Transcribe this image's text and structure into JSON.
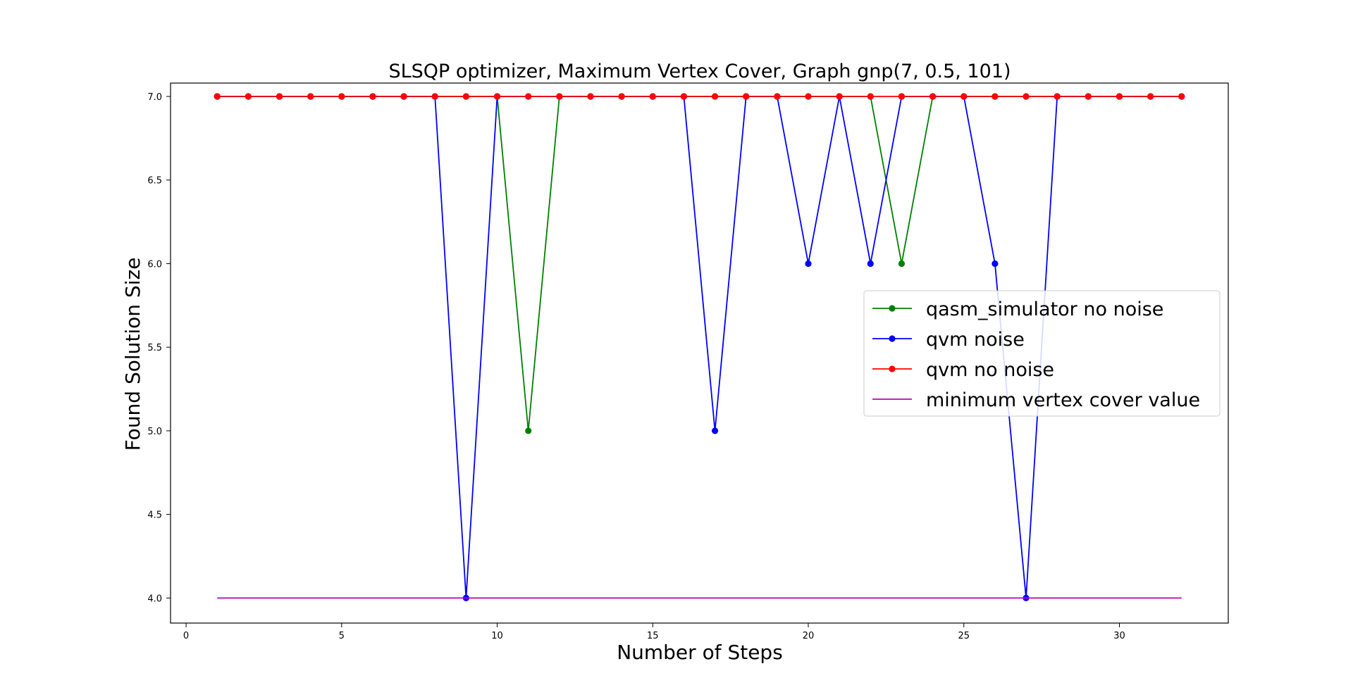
{
  "chart_data": {
    "type": "line",
    "title": "SLSQP optimizer, Maximum Vertex Cover, Graph gnp(7, 0.5, 101)",
    "xlabel": "Number of Steps",
    "ylabel": "Found Solution Size",
    "xlim": [
      -0.5,
      33.5
    ],
    "ylim": [
      3.85,
      7.08
    ],
    "xticks": [
      0,
      5,
      10,
      15,
      20,
      25,
      30
    ],
    "xtick_labels": [
      "0",
      "5",
      "10",
      "15",
      "20",
      "25",
      "30"
    ],
    "yticks": [
      4.0,
      4.5,
      5.0,
      5.5,
      6.0,
      6.5,
      7.0
    ],
    "ytick_labels": [
      "4.0",
      "4.5",
      "5.0",
      "5.5",
      "6.0",
      "6.5",
      "7.0"
    ],
    "grid": false,
    "legend_position": "center-right",
    "x": [
      1,
      2,
      3,
      4,
      5,
      6,
      7,
      8,
      9,
      10,
      11,
      12,
      13,
      14,
      15,
      16,
      17,
      18,
      19,
      20,
      21,
      22,
      23,
      24,
      25,
      26,
      27,
      28,
      29,
      30,
      31,
      32
    ],
    "series": [
      {
        "name": "qasm_simulator no noise",
        "color": "#008000",
        "marker": true,
        "values": [
          7,
          7,
          7,
          7,
          7,
          7,
          7,
          7,
          7,
          7,
          5,
          7,
          7,
          7,
          7,
          7,
          7,
          7,
          7,
          7,
          7,
          7,
          6,
          7,
          7,
          7,
          7,
          7,
          7,
          7,
          7,
          7
        ]
      },
      {
        "name": "qvm noise",
        "color": "#0000ff",
        "marker": true,
        "values": [
          7,
          7,
          7,
          7,
          7,
          7,
          7,
          7,
          4,
          7,
          7,
          7,
          7,
          7,
          7,
          7,
          5,
          7,
          7,
          6,
          7,
          6,
          7,
          7,
          7,
          6,
          4,
          7,
          7,
          7,
          7,
          7
        ]
      },
      {
        "name": "qvm no noise",
        "color": "#ff0000",
        "marker": true,
        "values": [
          7,
          7,
          7,
          7,
          7,
          7,
          7,
          7,
          7,
          7,
          7,
          7,
          7,
          7,
          7,
          7,
          7,
          7,
          7,
          7,
          7,
          7,
          7,
          7,
          7,
          7,
          7,
          7,
          7,
          7,
          7,
          7
        ]
      },
      {
        "name": "minimum vertex cover value",
        "color": "#bf00bf",
        "marker": false,
        "values": [
          4,
          4,
          4,
          4,
          4,
          4,
          4,
          4,
          4,
          4,
          4,
          4,
          4,
          4,
          4,
          4,
          4,
          4,
          4,
          4,
          4,
          4,
          4,
          4,
          4,
          4,
          4,
          4,
          4,
          4,
          4,
          4
        ]
      }
    ]
  }
}
